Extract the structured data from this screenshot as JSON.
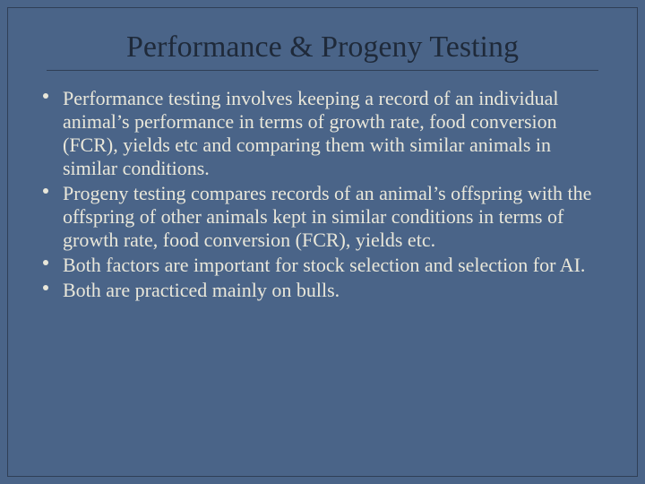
{
  "slide": {
    "background_color": "#4a6488",
    "border_color": "#2f3f56",
    "title": {
      "text": "Performance & Progeny Testing",
      "color": "#1f2a3a",
      "fontsize": 34,
      "font_family": "Georgia",
      "underline_color": "#2f3f56"
    },
    "body": {
      "text_color": "#e9e7da",
      "fontsize": 22,
      "bullet_marker_color": "#e9e7da",
      "bullets": [
        "Performance testing involves keeping a record of an individual animal’s performance in terms of growth rate, food conversion (FCR), yields etc and comparing them with similar animals in similar conditions.",
        "Progeny testing compares records of an animal’s offspring with the offspring of other animals kept in similar conditions in terms of growth rate, food conversion (FCR), yields etc.",
        "Both factors are important for stock selection and selection for AI.",
        "Both are practiced mainly on bulls."
      ]
    }
  }
}
